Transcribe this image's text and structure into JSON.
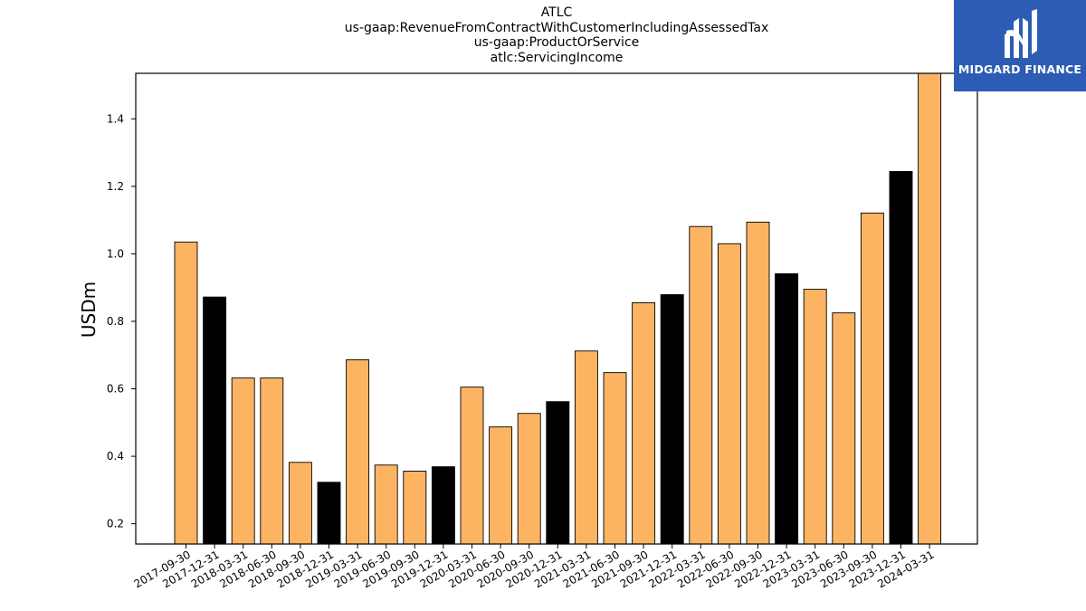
{
  "chart_data": {
    "type": "bar",
    "title_lines": [
      "ATLC",
      "us-gaap:RevenueFromContractWithCustomerIncludingAssessedTax",
      "us-gaap:ProductOrService",
      "atlc:ServicingIncome"
    ],
    "ylabel": "USDm",
    "xlabel": "",
    "ylim": [
      0.14,
      1.535
    ],
    "yticks": [
      0.2,
      0.4,
      0.6,
      0.8,
      1.0,
      1.2,
      1.4
    ],
    "grid": false,
    "categories": [
      "2017-09-30",
      "2017-12-31",
      "2018-03-31",
      "2018-06-30",
      "2018-09-30",
      "2018-12-31",
      "2019-03-31",
      "2019-06-30",
      "2019-09-30",
      "2019-12-31",
      "2020-03-31",
      "2020-06-30",
      "2020-09-30",
      "2020-12-31",
      "2021-03-31",
      "2021-06-30",
      "2021-09-30",
      "2021-12-31",
      "2022-03-31",
      "2022-06-30",
      "2022-09-30",
      "2022-12-31",
      "2023-03-31",
      "2023-06-30",
      "2023-09-30",
      "2023-12-31",
      "2024-03-31"
    ],
    "values": [
      1.035,
      0.872,
      0.632,
      0.632,
      0.382,
      0.323,
      0.686,
      0.374,
      0.356,
      0.369,
      0.605,
      0.487,
      0.527,
      0.562,
      0.712,
      0.648,
      0.855,
      0.879,
      1.081,
      1.03,
      1.094,
      0.941,
      0.895,
      0.825,
      1.121,
      1.244,
      1.54
    ],
    "highlight": [
      false,
      true,
      false,
      false,
      false,
      true,
      false,
      false,
      false,
      true,
      false,
      false,
      false,
      true,
      false,
      false,
      false,
      true,
      false,
      false,
      false,
      true,
      false,
      false,
      false,
      true,
      false
    ],
    "colors": {
      "bar": "#fdb462",
      "highlight": "#000000",
      "edge": "#000000"
    }
  },
  "logo": {
    "text": "MIDGARD FINANCE",
    "icon": "midgard-logo-icon",
    "bg": "#2c5cb3"
  }
}
